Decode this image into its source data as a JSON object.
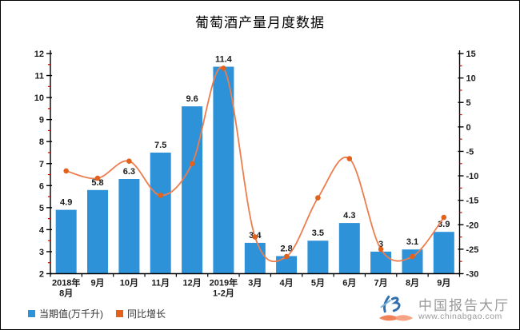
{
  "title": "葡萄酒产量月度数据",
  "legend": {
    "bar_label": "当期值(万千升)",
    "line_label": "同比增长"
  },
  "watermark": {
    "brand": "中国报告大厅",
    "site": "www.chinabgao.com"
  },
  "colors": {
    "bar": "#2e92d8",
    "line": "#ed7d4e",
    "marker": "#e2611c",
    "axis": "#000000",
    "minor_tick": "#c00000",
    "text": "#1a1a1a",
    "watermark_text": "#9a9a9a",
    "logo_blue": "#2f6fb0",
    "logo_light_blue": "#79b0d8",
    "logo_orange": "#f0825a"
  },
  "chart_data": {
    "type": "bar",
    "title": "葡萄酒产量月度数据",
    "categories": [
      "2018年\n8月",
      "9月",
      "10月",
      "11月",
      "12月",
      "2019年\n1-2月",
      "3月",
      "4月",
      "5月",
      "6月",
      "7月",
      "8月",
      "9月"
    ],
    "series": [
      {
        "name": "当期值(万千升)",
        "type": "bar",
        "axis": "left",
        "values": [
          4.9,
          5.8,
          6.3,
          7.5,
          9.6,
          11.4,
          3.4,
          2.8,
          3.5,
          4.3,
          3,
          3.1,
          3.9
        ],
        "labels": [
          "4.9",
          "5.8",
          "6.3",
          "7.5",
          "9.6",
          "11.4",
          "3.4",
          "2.8",
          "3.5",
          "4.3",
          "3",
          "3.1",
          "3.9"
        ]
      },
      {
        "name": "同比增长",
        "type": "line",
        "axis": "right",
        "values": [
          -9,
          -10.5,
          -7,
          -14,
          -7.5,
          12,
          -22.5,
          -26.5,
          -14.5,
          -6.5,
          -25,
          -26.5,
          -18.5
        ]
      }
    ],
    "left_axis": {
      "min": 2,
      "max": 12,
      "step": 1,
      "minor_step": 0.5
    },
    "right_axis": {
      "min": -30,
      "max": 15,
      "step": 5,
      "minor_step": 2.5
    },
    "grid": false,
    "legend_position": "bottom-left"
  }
}
